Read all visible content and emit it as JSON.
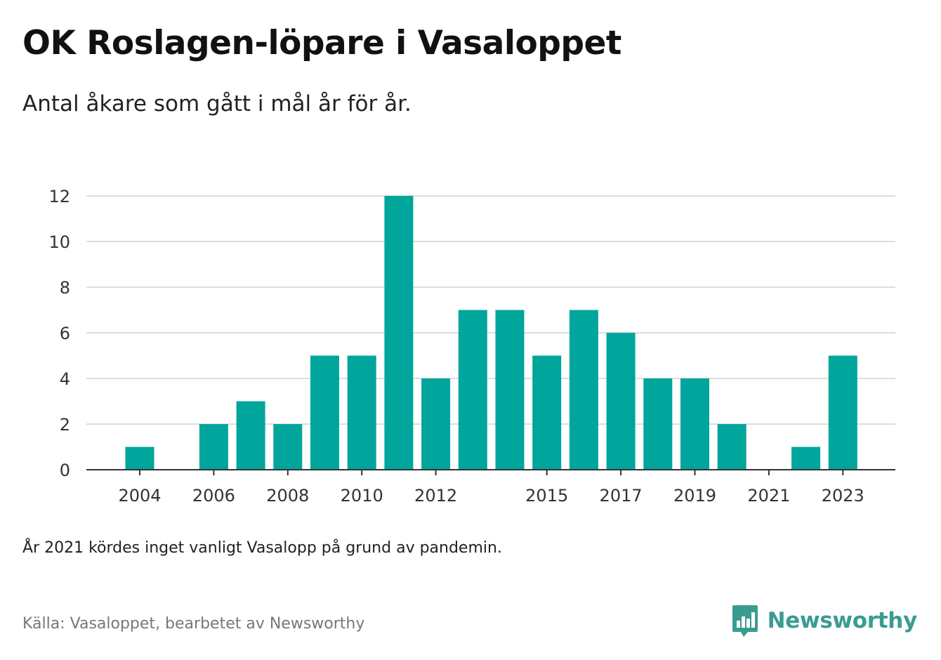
{
  "title": "OK Roslagen-löpare i Vasaloppet",
  "subtitle": "Antal åkare som gått i mål år för år.",
  "note": "År 2021 kördes inget vanligt Vasalopp på grund av pandemin.",
  "source": "Källa: Vasaloppet, bearbetet av Newsworthy",
  "brand": {
    "name": "Newsworthy",
    "icon": "newsworthy-logo-icon",
    "color": "#3a9c91"
  },
  "colors": {
    "bar": "#00a59b",
    "grid": "#dddddd",
    "axis": "#333333"
  },
  "chart_data": {
    "type": "bar",
    "categories": [
      "2004",
      "2005",
      "2006",
      "2007",
      "2008",
      "2009",
      "2010",
      "2011",
      "2012",
      "2013",
      "2014",
      "2015",
      "2016",
      "2017",
      "2018",
      "2019",
      "2020",
      "2021",
      "2022",
      "2023"
    ],
    "values": [
      1,
      0,
      2,
      3,
      2,
      5,
      5,
      12,
      4,
      7,
      7,
      5,
      7,
      6,
      4,
      4,
      2,
      0,
      1,
      5
    ],
    "x_tick_labels": [
      "2004",
      "2006",
      "2008",
      "2010",
      "2012",
      "2015",
      "2017",
      "2019",
      "2021",
      "2023"
    ],
    "y_ticks": [
      0,
      2,
      4,
      6,
      8,
      10,
      12
    ],
    "ylim": [
      0,
      12
    ],
    "xlabel": "",
    "ylabel": "",
    "grid": true,
    "legend": "none"
  }
}
